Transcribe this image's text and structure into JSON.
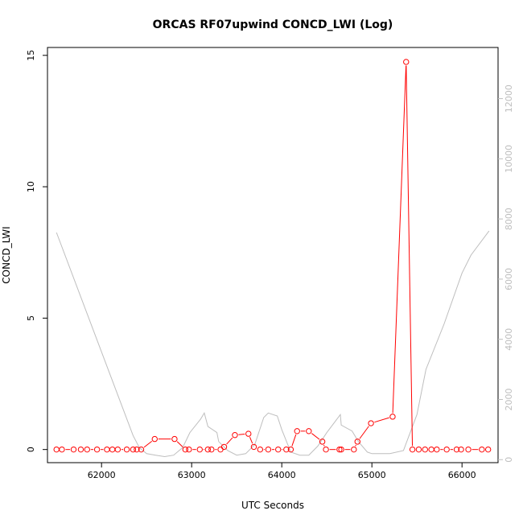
{
  "chart_data": {
    "type": "line",
    "title": "ORCAS RF07upwind CONCD_LWI (Log)",
    "xlabel": "UTC Seconds",
    "ylabel": "CONCD_LWI",
    "xlim": [
      61400,
      66400
    ],
    "ylim": [
      -0.5,
      15.3
    ],
    "y2lim": [
      -100,
      13700
    ],
    "x_ticks": [
      "62000",
      "63000",
      "64000",
      "65000",
      "66000"
    ],
    "y_ticks": [
      "0",
      "5",
      "10",
      "15"
    ],
    "y2_ticks": [
      "0",
      "2000",
      "4000",
      "6000",
      "8000",
      "10000",
      "12000"
    ],
    "grid": false,
    "colors": {
      "series": "#ff0000",
      "secondary": "#bebebe"
    },
    "series": [
      {
        "marker": "open-circle",
        "x": [
          61500,
          61560,
          61690,
          61770,
          61840,
          61950,
          62060,
          62120,
          62180,
          62280,
          62350,
          62390,
          62440,
          62590,
          62810,
          62930,
          62970,
          63090,
          63180,
          63220,
          63320,
          63360,
          63480,
          63630,
          63690,
          63760,
          63850,
          63960,
          64050,
          64100,
          64170,
          64300,
          64450,
          64490,
          64640,
          64660,
          64800,
          64840,
          64990,
          65230,
          65380,
          65450,
          65520,
          65590,
          65660,
          65720,
          65830,
          65940,
          65990,
          66070,
          66220,
          66290
        ],
        "y": [
          0,
          0,
          0,
          0,
          0,
          0,
          0,
          0,
          0,
          0,
          0,
          0,
          0,
          0.4,
          0.4,
          0,
          0,
          0,
          0,
          0,
          0,
          0.1,
          0.55,
          0.6,
          0.1,
          0,
          0,
          0,
          0,
          0,
          0.7,
          0.7,
          0.3,
          0,
          0,
          0,
          0,
          0.3,
          1.0,
          1.25,
          14.75,
          0,
          0,
          0,
          0,
          0,
          0,
          0,
          0,
          0,
          0,
          0
        ]
      },
      {
        "axis": "right",
        "x": [
          61500,
          62350,
          62420,
          62500,
          62600,
          62700,
          62800,
          62900,
          62980,
          63100,
          63140,
          63180,
          63280,
          63300,
          63400,
          63500,
          63600,
          63700,
          63800,
          63850,
          63950,
          64000,
          64100,
          64200,
          64300,
          64400,
          64500,
          64600,
          64650,
          64660,
          64780,
          64850,
          64950,
          65000,
          65200,
          65350,
          65500,
          65600,
          65800,
          66000,
          66100,
          66300
        ],
        "y": [
          7550,
          800,
          400,
          200,
          150,
          100,
          150,
          400,
          900,
          1350,
          1550,
          1100,
          900,
          600,
          300,
          150,
          200,
          500,
          1400,
          1550,
          1450,
          1000,
          250,
          150,
          150,
          450,
          900,
          1300,
          1500,
          1150,
          950,
          600,
          250,
          200,
          200,
          300,
          1500,
          3000,
          4500,
          6200,
          6800,
          7600
        ]
      }
    ]
  }
}
